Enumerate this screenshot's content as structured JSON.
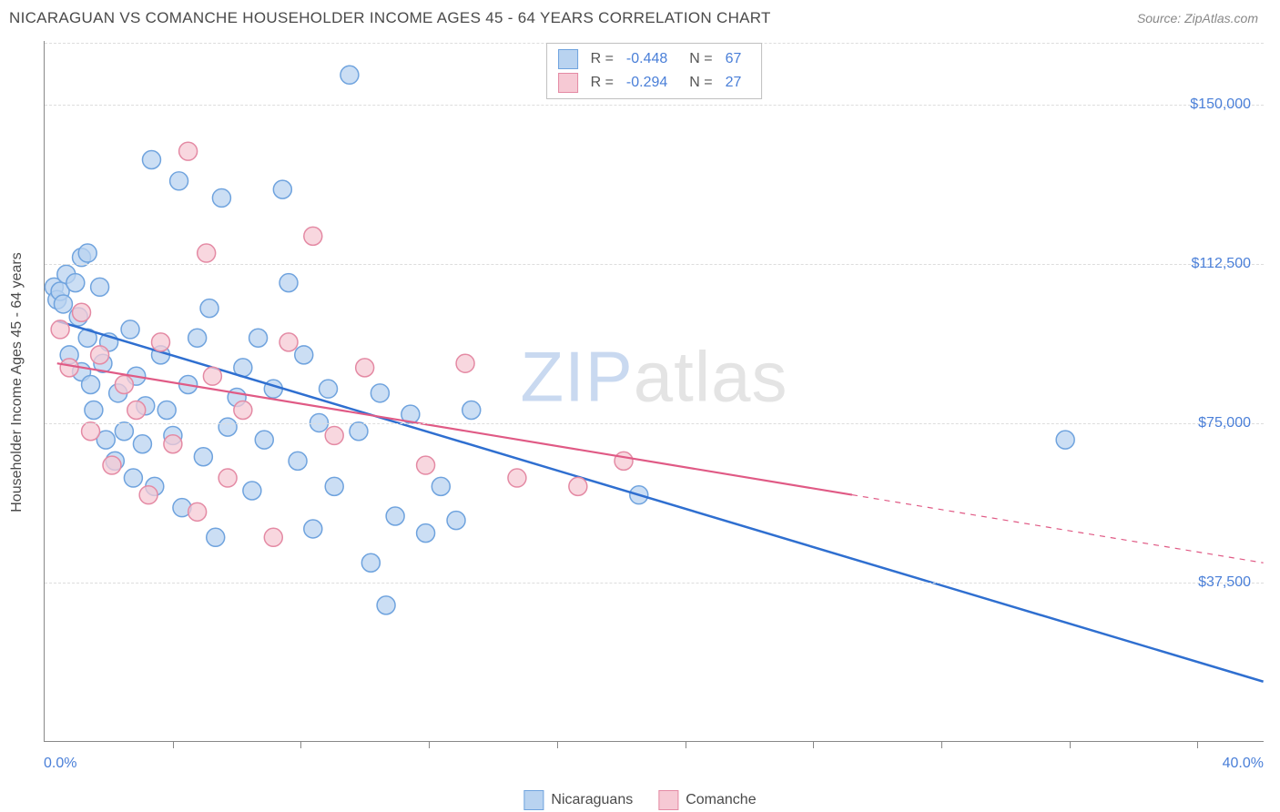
{
  "header": {
    "title": "NICARAGUAN VS COMANCHE HOUSEHOLDER INCOME AGES 45 - 64 YEARS CORRELATION CHART",
    "source": "Source: ZipAtlas.com"
  },
  "chart": {
    "type": "scatter",
    "yaxis_title": "Householder Income Ages 45 - 64 years",
    "xlim": [
      0,
      40
    ],
    "ylim": [
      0,
      165000
    ],
    "xlabel_min": "0.0%",
    "xlabel_max": "40.0%",
    "yticks": [
      {
        "v": 37500,
        "label": "$37,500"
      },
      {
        "v": 75000,
        "label": "$75,000"
      },
      {
        "v": 112500,
        "label": "$112,500"
      },
      "  ",
      {
        "v": 150000,
        "label": "$150,000"
      }
    ],
    "xtick_positions": [
      4.2,
      8.4,
      12.6,
      16.8,
      21.0,
      25.2,
      29.4,
      33.6,
      37.8
    ],
    "grid_color": "#dddddd",
    "axis_color": "#888888",
    "background_color": "#ffffff",
    "watermark": {
      "bold": "ZIP",
      "rest": "atlas",
      "bold_color": "#c9d9f0",
      "rest_color": "#e4e4e4"
    },
    "series": [
      {
        "name": "Nicaraguans",
        "fill": "#b9d3f0",
        "stroke": "#6fa3de",
        "marker_radius": 10,
        "marker_opacity": 0.75,
        "R": "-0.448",
        "N": "67",
        "trend": {
          "x1": 0.4,
          "y1": 99000,
          "x2": 40,
          "y2": 14000,
          "color": "#2f6fd0",
          "width": 2.5,
          "dash_after_x": null
        },
        "points": [
          [
            0.3,
            107000
          ],
          [
            0.4,
            104000
          ],
          [
            0.5,
            106000
          ],
          [
            0.6,
            103000
          ],
          [
            0.7,
            110000
          ],
          [
            0.8,
            91000
          ],
          [
            1.0,
            108000
          ],
          [
            1.1,
            100000
          ],
          [
            1.2,
            114000
          ],
          [
            1.2,
            87000
          ],
          [
            1.4,
            115000
          ],
          [
            1.4,
            95000
          ],
          [
            1.5,
            84000
          ],
          [
            1.6,
            78000
          ],
          [
            1.8,
            107000
          ],
          [
            1.9,
            89000
          ],
          [
            2.0,
            71000
          ],
          [
            2.1,
            94000
          ],
          [
            2.3,
            66000
          ],
          [
            2.4,
            82000
          ],
          [
            2.6,
            73000
          ],
          [
            2.8,
            97000
          ],
          [
            2.9,
            62000
          ],
          [
            3.0,
            86000
          ],
          [
            3.2,
            70000
          ],
          [
            3.3,
            79000
          ],
          [
            3.5,
            137000
          ],
          [
            3.6,
            60000
          ],
          [
            3.8,
            91000
          ],
          [
            4.0,
            78000
          ],
          [
            4.2,
            72000
          ],
          [
            4.4,
            132000
          ],
          [
            4.5,
            55000
          ],
          [
            4.7,
            84000
          ],
          [
            5.0,
            95000
          ],
          [
            5.2,
            67000
          ],
          [
            5.4,
            102000
          ],
          [
            5.6,
            48000
          ],
          [
            5.8,
            128000
          ],
          [
            6.0,
            74000
          ],
          [
            6.3,
            81000
          ],
          [
            6.5,
            88000
          ],
          [
            6.8,
            59000
          ],
          [
            7.0,
            95000
          ],
          [
            7.2,
            71000
          ],
          [
            7.5,
            83000
          ],
          [
            7.8,
            130000
          ],
          [
            8.0,
            108000
          ],
          [
            8.3,
            66000
          ],
          [
            8.5,
            91000
          ],
          [
            8.8,
            50000
          ],
          [
            9.0,
            75000
          ],
          [
            9.3,
            83000
          ],
          [
            9.5,
            60000
          ],
          [
            10.0,
            157000
          ],
          [
            10.3,
            73000
          ],
          [
            10.7,
            42000
          ],
          [
            11.0,
            82000
          ],
          [
            11.5,
            53000
          ],
          [
            12.0,
            77000
          ],
          [
            12.5,
            49000
          ],
          [
            13.0,
            60000
          ],
          [
            13.5,
            52000
          ],
          [
            14.0,
            78000
          ],
          [
            11.2,
            32000
          ],
          [
            19.5,
            58000
          ],
          [
            33.5,
            71000
          ]
        ]
      },
      {
        "name": "Comanche",
        "fill": "#f6c9d4",
        "stroke": "#e48aa4",
        "marker_radius": 10,
        "marker_opacity": 0.75,
        "R": "-0.294",
        "N": "27",
        "trend": {
          "x1": 0.4,
          "y1": 89000,
          "x2": 40,
          "y2": 42000,
          "color": "#e05a85",
          "width": 2.2,
          "dash_after_x": 26.5
        },
        "points": [
          [
            0.5,
            97000
          ],
          [
            0.8,
            88000
          ],
          [
            1.2,
            101000
          ],
          [
            1.5,
            73000
          ],
          [
            1.8,
            91000
          ],
          [
            2.2,
            65000
          ],
          [
            2.6,
            84000
          ],
          [
            3.0,
            78000
          ],
          [
            3.4,
            58000
          ],
          [
            3.8,
            94000
          ],
          [
            4.2,
            70000
          ],
          [
            4.7,
            139000
          ],
          [
            5.0,
            54000
          ],
          [
            5.5,
            86000
          ],
          [
            6.0,
            62000
          ],
          [
            6.5,
            78000
          ],
          [
            5.3,
            115000
          ],
          [
            7.5,
            48000
          ],
          [
            8.0,
            94000
          ],
          [
            8.8,
            119000
          ],
          [
            9.5,
            72000
          ],
          [
            10.5,
            88000
          ],
          [
            12.5,
            65000
          ],
          [
            13.8,
            89000
          ],
          [
            15.5,
            62000
          ],
          [
            17.5,
            60000
          ],
          [
            19.0,
            66000
          ]
        ]
      }
    ]
  }
}
